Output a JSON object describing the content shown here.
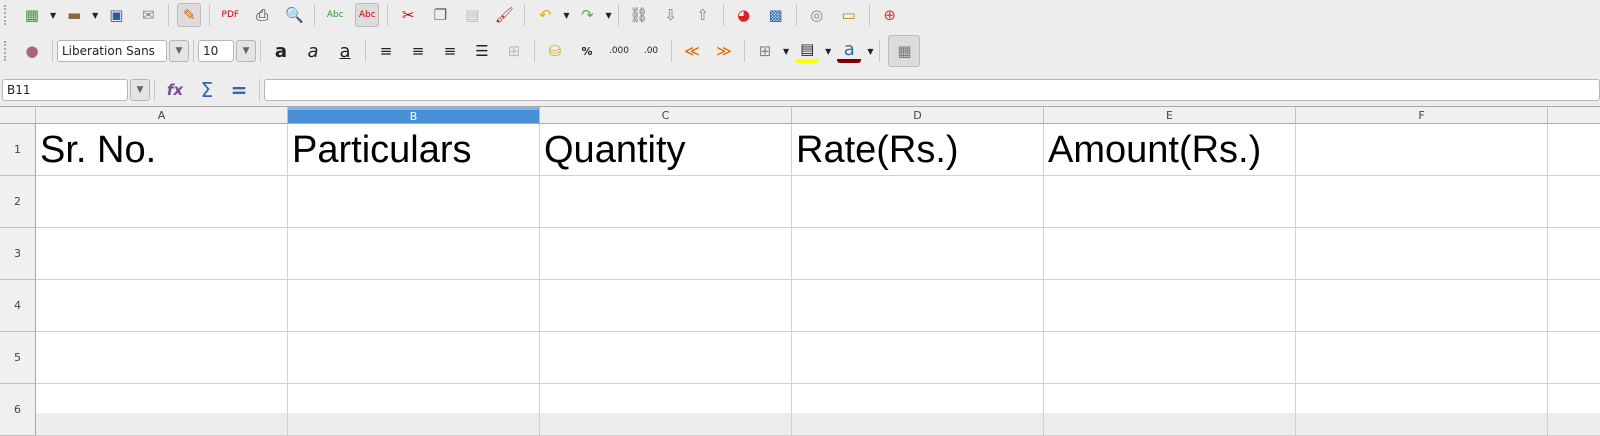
{
  "toolbar_standard": [
    "new-spreadsheet",
    "open",
    "save",
    "email",
    "edit-mode",
    "export-pdf",
    "print",
    "print-preview",
    "spellcheck",
    "autospellcheck",
    "cut",
    "copy",
    "paste",
    "clone-formatting",
    "undo",
    "redo",
    "hyperlink",
    "sort-ascending",
    "sort-descending",
    "chart",
    "draw-functions",
    "navigator",
    "gallery",
    "help"
  ],
  "formatting": {
    "font_name": "Liberation Sans",
    "font_size": "10"
  },
  "formula_bar": {
    "name_box": "B11",
    "formula": ""
  },
  "columns": [
    "A",
    "B",
    "C",
    "D",
    "E",
    "F"
  ],
  "selected_column": "B",
  "rows": [
    {
      "num": "1",
      "cells": [
        "Sr. No.",
        "Particulars",
        "Quantity",
        "Rate(Rs.)",
        "Amount(Rs.)",
        ""
      ]
    },
    {
      "num": "2",
      "cells": [
        "",
        "",
        "",
        "",
        "",
        ""
      ]
    },
    {
      "num": "3",
      "cells": [
        "",
        "",
        "",
        "",
        "",
        ""
      ]
    },
    {
      "num": "4",
      "cells": [
        "",
        "",
        "",
        "",
        "",
        ""
      ]
    },
    {
      "num": "5",
      "cells": [
        "",
        "",
        "",
        "",
        "",
        ""
      ]
    },
    {
      "num": "6",
      "cells": [
        "",
        "",
        "",
        "",
        "",
        ""
      ]
    }
  ],
  "colors": {
    "highlight": "#ffff00",
    "font_color": "#800000",
    "selection": "#4a90d9"
  }
}
